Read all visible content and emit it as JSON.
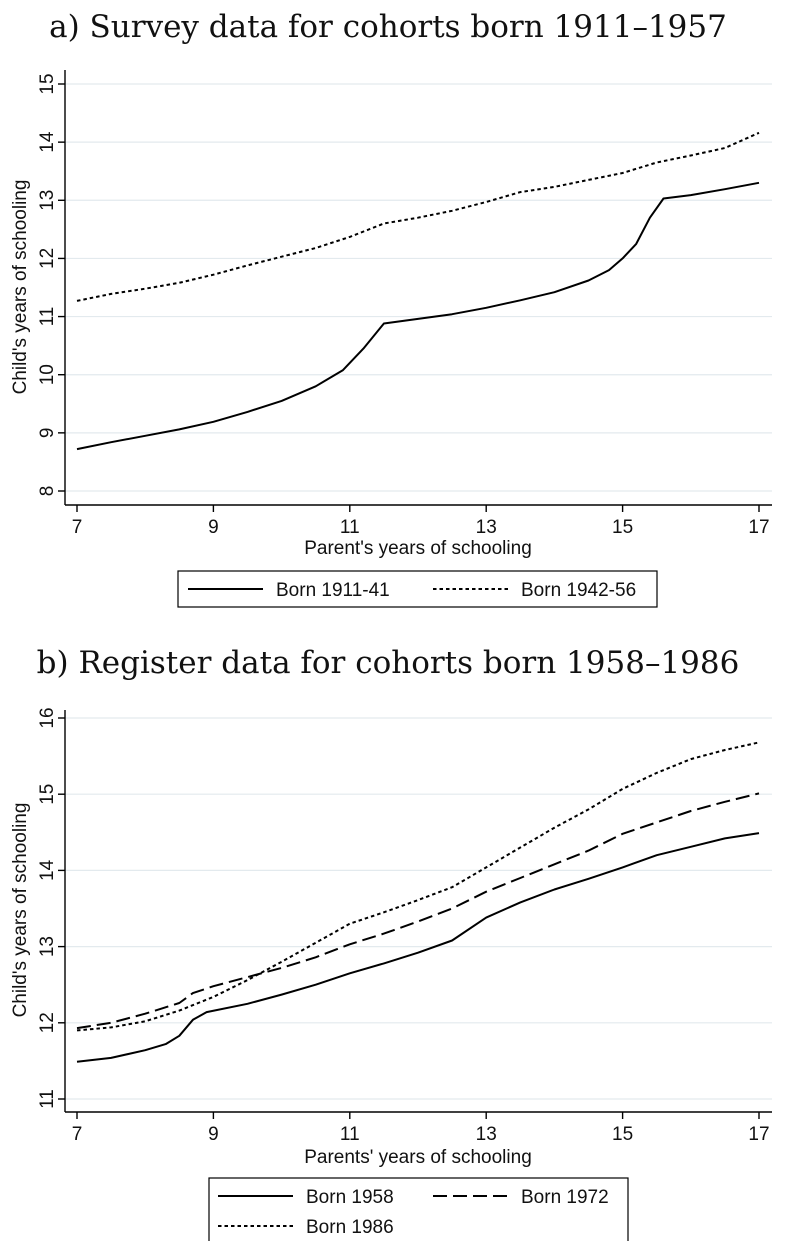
{
  "chart_data": [
    {
      "type": "line",
      "title": "a) Survey data for cohorts born 1911–1957",
      "xlabel": "Parent's years of schooling",
      "ylabel": "Child's years of schooling",
      "xlim": [
        7,
        17
      ],
      "ylim": [
        8,
        15
      ],
      "xticks": [
        "7",
        "9",
        "11",
        "13",
        "15",
        "17"
      ],
      "yticks": [
        "8",
        "9",
        "10",
        "11",
        "12",
        "13",
        "14",
        "15"
      ],
      "grid": true,
      "legend_position": "bottom",
      "series": [
        {
          "name": "Born 1911-41",
          "style": "solid",
          "points": [
            [
              7.0,
              8.72
            ],
            [
              7.5,
              8.84
            ],
            [
              8.0,
              8.95
            ],
            [
              8.5,
              9.06
            ],
            [
              9.0,
              9.19
            ],
            [
              9.5,
              9.36
            ],
            [
              10.0,
              9.55
            ],
            [
              10.5,
              9.8
            ],
            [
              10.9,
              10.08
            ],
            [
              11.2,
              10.45
            ],
            [
              11.5,
              10.88
            ],
            [
              12.0,
              10.96
            ],
            [
              12.5,
              11.04
            ],
            [
              13.0,
              11.15
            ],
            [
              13.5,
              11.28
            ],
            [
              14.0,
              11.42
            ],
            [
              14.5,
              11.62
            ],
            [
              14.8,
              11.8
            ],
            [
              15.0,
              12.0
            ],
            [
              15.2,
              12.25
            ],
            [
              15.4,
              12.7
            ],
            [
              15.6,
              13.03
            ],
            [
              16.0,
              13.09
            ],
            [
              16.5,
              13.19
            ],
            [
              17.0,
              13.3
            ]
          ]
        },
        {
          "name": "Born 1942-56",
          "style": "dotted",
          "points": [
            [
              7.0,
              11.27
            ],
            [
              7.5,
              11.39
            ],
            [
              8.0,
              11.48
            ],
            [
              8.5,
              11.58
            ],
            [
              9.0,
              11.72
            ],
            [
              9.5,
              11.88
            ],
            [
              10.0,
              12.03
            ],
            [
              10.5,
              12.18
            ],
            [
              11.0,
              12.37
            ],
            [
              11.5,
              12.6
            ],
            [
              12.0,
              12.7
            ],
            [
              12.5,
              12.82
            ],
            [
              13.0,
              12.97
            ],
            [
              13.5,
              13.14
            ],
            [
              14.0,
              13.23
            ],
            [
              14.5,
              13.35
            ],
            [
              15.0,
              13.47
            ],
            [
              15.5,
              13.65
            ],
            [
              16.0,
              13.77
            ],
            [
              16.5,
              13.9
            ],
            [
              17.0,
              14.16
            ]
          ]
        }
      ]
    },
    {
      "type": "line",
      "title": "b) Register data for cohorts born 1958–1986",
      "xlabel": "Parents' years of schooling",
      "ylabel": "Child's years of schooling",
      "xlim": [
        7,
        17
      ],
      "ylim": [
        11,
        16
      ],
      "xticks": [
        "7",
        "9",
        "11",
        "13",
        "15",
        "17"
      ],
      "yticks": [
        "11",
        "12",
        "13",
        "14",
        "15",
        "16"
      ],
      "grid": true,
      "legend_position": "bottom",
      "series": [
        {
          "name": "Born 1958",
          "style": "solid",
          "points": [
            [
              7.0,
              11.49
            ],
            [
              7.5,
              11.54
            ],
            [
              8.0,
              11.64
            ],
            [
              8.3,
              11.72
            ],
            [
              8.5,
              11.83
            ],
            [
              8.7,
              12.04
            ],
            [
              8.9,
              12.14
            ],
            [
              9.5,
              12.25
            ],
            [
              10.0,
              12.37
            ],
            [
              10.5,
              12.5
            ],
            [
              11.0,
              12.65
            ],
            [
              11.5,
              12.78
            ],
            [
              12.0,
              12.92
            ],
            [
              12.5,
              13.08
            ],
            [
              13.0,
              13.38
            ],
            [
              13.5,
              13.58
            ],
            [
              14.0,
              13.75
            ],
            [
              14.5,
              13.89
            ],
            [
              15.0,
              14.04
            ],
            [
              15.5,
              14.2
            ],
            [
              16.0,
              14.31
            ],
            [
              16.5,
              14.42
            ],
            [
              17.0,
              14.49
            ]
          ]
        },
        {
          "name": "Born 1972",
          "style": "dashed",
          "points": [
            [
              7.0,
              11.93
            ],
            [
              7.5,
              12.0
            ],
            [
              8.0,
              12.12
            ],
            [
              8.5,
              12.26
            ],
            [
              8.7,
              12.39
            ],
            [
              9.0,
              12.48
            ],
            [
              9.5,
              12.6
            ],
            [
              10.0,
              12.72
            ],
            [
              10.5,
              12.86
            ],
            [
              11.0,
              13.03
            ],
            [
              11.5,
              13.17
            ],
            [
              12.0,
              13.33
            ],
            [
              12.5,
              13.5
            ],
            [
              13.0,
              13.72
            ],
            [
              13.5,
              13.9
            ],
            [
              14.0,
              14.08
            ],
            [
              14.5,
              14.26
            ],
            [
              15.0,
              14.48
            ],
            [
              15.5,
              14.63
            ],
            [
              16.0,
              14.78
            ],
            [
              16.5,
              14.9
            ],
            [
              17.0,
              15.01
            ]
          ]
        },
        {
          "name": "Born 1986",
          "style": "dotted",
          "points": [
            [
              7.0,
              11.9
            ],
            [
              7.5,
              11.94
            ],
            [
              8.0,
              12.02
            ],
            [
              8.5,
              12.16
            ],
            [
              9.0,
              12.34
            ],
            [
              9.5,
              12.56
            ],
            [
              10.0,
              12.8
            ],
            [
              10.5,
              13.05
            ],
            [
              11.0,
              13.3
            ],
            [
              11.5,
              13.45
            ],
            [
              12.0,
              13.61
            ],
            [
              12.5,
              13.78
            ],
            [
              13.0,
              14.04
            ],
            [
              13.5,
              14.3
            ],
            [
              14.0,
              14.56
            ],
            [
              14.5,
              14.8
            ],
            [
              15.0,
              15.07
            ],
            [
              15.5,
              15.28
            ],
            [
              16.0,
              15.46
            ],
            [
              16.5,
              15.58
            ],
            [
              17.0,
              15.68
            ]
          ]
        }
      ]
    }
  ]
}
